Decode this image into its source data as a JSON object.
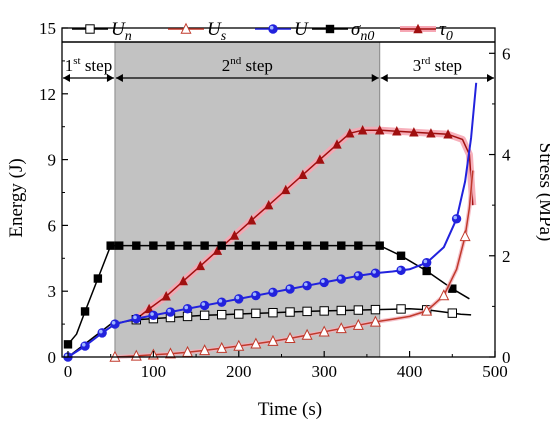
{
  "chart_data": {
    "type": "line",
    "xlabel": "Time (s)",
    "ylabel_left": "Energy (J)",
    "ylabel_right": "Stress (MPa)",
    "xlim": [
      -7,
      500
    ],
    "ylim_left": [
      0,
      15
    ],
    "ylim_right": [
      0,
      6.5
    ],
    "x_ticks": [
      "0",
      "100",
      "200",
      "300",
      "400",
      "500"
    ],
    "y_left_ticks": [
      "0",
      "3",
      "6",
      "9",
      "12",
      "15"
    ],
    "y_right_ticks": [
      "0",
      "2",
      "4",
      "6"
    ],
    "grid": false,
    "legend_position": "top",
    "legend": [
      {
        "main": "U",
        "sub": "n"
      },
      {
        "main": "U",
        "sub": "s"
      },
      {
        "main": "U",
        "sub": ""
      },
      {
        "main": "σ",
        "sub": "n0"
      },
      {
        "main": "τ",
        "sub": "0"
      }
    ],
    "steps": [
      {
        "num": "1",
        "sup": "st",
        "word": " step",
        "start": -7,
        "end": 55
      },
      {
        "num": "2",
        "sup": "nd",
        "word": " step",
        "start": 55,
        "end": 365
      },
      {
        "num": "3",
        "sup": "rd",
        "word": " step",
        "start": 365,
        "end": 500
      }
    ],
    "series": [
      {
        "name": "Un",
        "axis": "left",
        "color": "#000000",
        "marker": "square-open",
        "x": [
          0,
          50,
          80,
          100,
          120,
          140,
          160,
          180,
          200,
          220,
          240,
          260,
          280,
          300,
          320,
          340,
          360,
          380,
          400,
          420,
          440,
          460,
          472
        ],
        "y": [
          0,
          1.5,
          1.7,
          1.75,
          1.8,
          1.85,
          1.9,
          1.93,
          1.96,
          1.99,
          2.02,
          2.05,
          2.08,
          2.1,
          2.12,
          2.14,
          2.16,
          2.18,
          2.2,
          2.15,
          2.05,
          1.95,
          1.92
        ],
        "marks": [
          80,
          100,
          120,
          140,
          160,
          180,
          200,
          220,
          240,
          260,
          280,
          300,
          320,
          340,
          360,
          390,
          420,
          450
        ]
      },
      {
        "name": "Us",
        "axis": "left",
        "color": "#c0392b",
        "marker": "triangle-open",
        "x": [
          55,
          80,
          100,
          120,
          140,
          160,
          180,
          200,
          220,
          240,
          260,
          280,
          300,
          320,
          340,
          360,
          380,
          400,
          420,
          440,
          455,
          465,
          470,
          474
        ],
        "y": [
          0,
          0.05,
          0.1,
          0.15,
          0.22,
          0.3,
          0.4,
          0.5,
          0.6,
          0.72,
          0.85,
          1.0,
          1.15,
          1.3,
          1.45,
          1.6,
          1.72,
          1.85,
          2.1,
          2.8,
          4.0,
          5.5,
          6.8,
          8.5
        ],
        "marks": [
          55,
          80,
          100,
          120,
          140,
          160,
          180,
          200,
          220,
          240,
          260,
          280,
          300,
          320,
          340,
          360,
          420,
          440,
          465
        ]
      },
      {
        "name": "U",
        "axis": "left",
        "color": "#2222dd",
        "marker": "circle",
        "x": [
          0,
          20,
          40,
          55,
          80,
          100,
          120,
          140,
          160,
          180,
          200,
          220,
          240,
          260,
          280,
          300,
          320,
          340,
          360,
          380,
          400,
          420,
          440,
          455,
          465,
          472,
          478
        ],
        "y": [
          0,
          0.5,
          1.1,
          1.5,
          1.75,
          1.9,
          2.05,
          2.2,
          2.35,
          2.5,
          2.65,
          2.8,
          2.95,
          3.1,
          3.25,
          3.4,
          3.55,
          3.7,
          3.82,
          3.9,
          4.0,
          4.3,
          5.0,
          6.3,
          8.0,
          10.0,
          12.5
        ],
        "marks": [
          0,
          20,
          40,
          55,
          80,
          100,
          120,
          140,
          160,
          180,
          200,
          220,
          240,
          260,
          280,
          300,
          320,
          340,
          360,
          390,
          420,
          455
        ]
      },
      {
        "name": "σn0",
        "axis": "right",
        "color": "#000000",
        "marker": "square",
        "x": [
          0,
          10,
          20,
          35,
          50,
          60,
          80,
          100,
          120,
          140,
          160,
          180,
          200,
          220,
          240,
          260,
          280,
          300,
          320,
          340,
          365,
          390,
          420,
          450,
          470
        ],
        "y": [
          0.25,
          0.45,
          0.9,
          1.55,
          2.2,
          2.2,
          2.2,
          2.2,
          2.2,
          2.2,
          2.2,
          2.2,
          2.2,
          2.2,
          2.2,
          2.2,
          2.2,
          2.2,
          2.2,
          2.2,
          2.2,
          2.0,
          1.7,
          1.35,
          1.15
        ],
        "marks": [
          0,
          20,
          35,
          50,
          60,
          80,
          100,
          120,
          140,
          160,
          180,
          200,
          220,
          240,
          260,
          280,
          300,
          320,
          340,
          365,
          390,
          420,
          450
        ]
      },
      {
        "name": "τ0",
        "axis": "right",
        "color": "#a01010",
        "marker": "triangle",
        "x": [
          80,
          95,
          115,
          135,
          155,
          175,
          195,
          215,
          235,
          255,
          275,
          295,
          315,
          330,
          345,
          365,
          385,
          405,
          425,
          445,
          462,
          470,
          474
        ],
        "y": [
          0.75,
          0.95,
          1.2,
          1.5,
          1.8,
          2.1,
          2.4,
          2.7,
          3.0,
          3.3,
          3.6,
          3.9,
          4.2,
          4.42,
          4.48,
          4.48,
          4.46,
          4.44,
          4.42,
          4.4,
          4.3,
          4.0,
          3.0
        ],
        "marks": [
          80,
          95,
          115,
          135,
          155,
          175,
          195,
          215,
          235,
          255,
          275,
          295,
          315,
          330,
          345,
          365,
          385,
          405,
          425,
          445
        ]
      }
    ]
  }
}
